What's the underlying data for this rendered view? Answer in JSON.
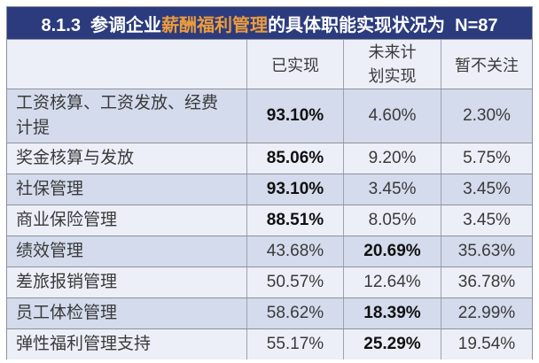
{
  "title": {
    "prefix": "8.1.3  参调企业",
    "highlight": "薪酬福利管理",
    "suffix": "的具体职能实现状况为  N=87"
  },
  "colors": {
    "title_bg": "#2B3B7D",
    "title_text": "#FFFFFF",
    "highlight": "#EC9C3D",
    "header_bg": "#ECEFF8",
    "row_lavender": "#D3DBEC",
    "row_light": "#ECEFF8",
    "border_h": "#8D919B",
    "border_v": "#9EA2AC",
    "text": "#3A3A3A",
    "bold_text": "#101010"
  },
  "table": {
    "columns": [
      "",
      "已实现",
      "未来计划实现",
      "暂不关注"
    ],
    "rows": [
      {
        "label": "工资核算、工资发放、经费计提",
        "values": [
          "93.10%",
          "4.60%",
          "2.30%"
        ],
        "bold": [
          true,
          false,
          false
        ]
      },
      {
        "label": "奖金核算与发放",
        "values": [
          "85.06%",
          "9.20%",
          "5.75%"
        ],
        "bold": [
          true,
          false,
          false
        ]
      },
      {
        "label": "社保管理",
        "values": [
          "93.10%",
          "3.45%",
          "3.45%"
        ],
        "bold": [
          true,
          false,
          false
        ]
      },
      {
        "label": "商业保险管理",
        "values": [
          "88.51%",
          "8.05%",
          "3.45%"
        ],
        "bold": [
          true,
          false,
          false
        ]
      },
      {
        "label": "绩效管理",
        "values": [
          "43.68%",
          "20.69%",
          "35.63%"
        ],
        "bold": [
          false,
          true,
          false
        ]
      },
      {
        "label": "差旅报销管理",
        "values": [
          "50.57%",
          "12.64%",
          "36.78%"
        ],
        "bold": [
          false,
          false,
          false
        ]
      },
      {
        "label": "员工体检管理",
        "values": [
          "58.62%",
          "18.39%",
          "22.99%"
        ],
        "bold": [
          false,
          true,
          false
        ]
      },
      {
        "label": "弹性福利管理支持",
        "values": [
          "55.17%",
          "25.29%",
          "19.54%"
        ],
        "bold": [
          false,
          true,
          false
        ]
      }
    ]
  },
  "chart_data": {
    "type": "table",
    "title": "8.1.3 参调企业薪酬福利管理的具体职能实现状况为 N=87",
    "sample_size": 87,
    "unit": "%",
    "categories": [
      "工资核算、工资发放、经费计提",
      "奖金核算与发放",
      "社保管理",
      "商业保险管理",
      "绩效管理",
      "差旅报销管理",
      "员工体检管理",
      "弹性福利管理支持"
    ],
    "series": [
      {
        "name": "已实现",
        "values": [
          93.1,
          85.06,
          93.1,
          88.51,
          43.68,
          50.57,
          58.62,
          55.17
        ]
      },
      {
        "name": "未来计划实现",
        "values": [
          4.6,
          9.2,
          3.45,
          8.05,
          20.69,
          12.64,
          18.39,
          25.29
        ]
      },
      {
        "name": "暂不关注",
        "values": [
          2.3,
          5.75,
          3.45,
          3.45,
          35.63,
          36.78,
          22.99,
          19.54
        ]
      }
    ]
  }
}
